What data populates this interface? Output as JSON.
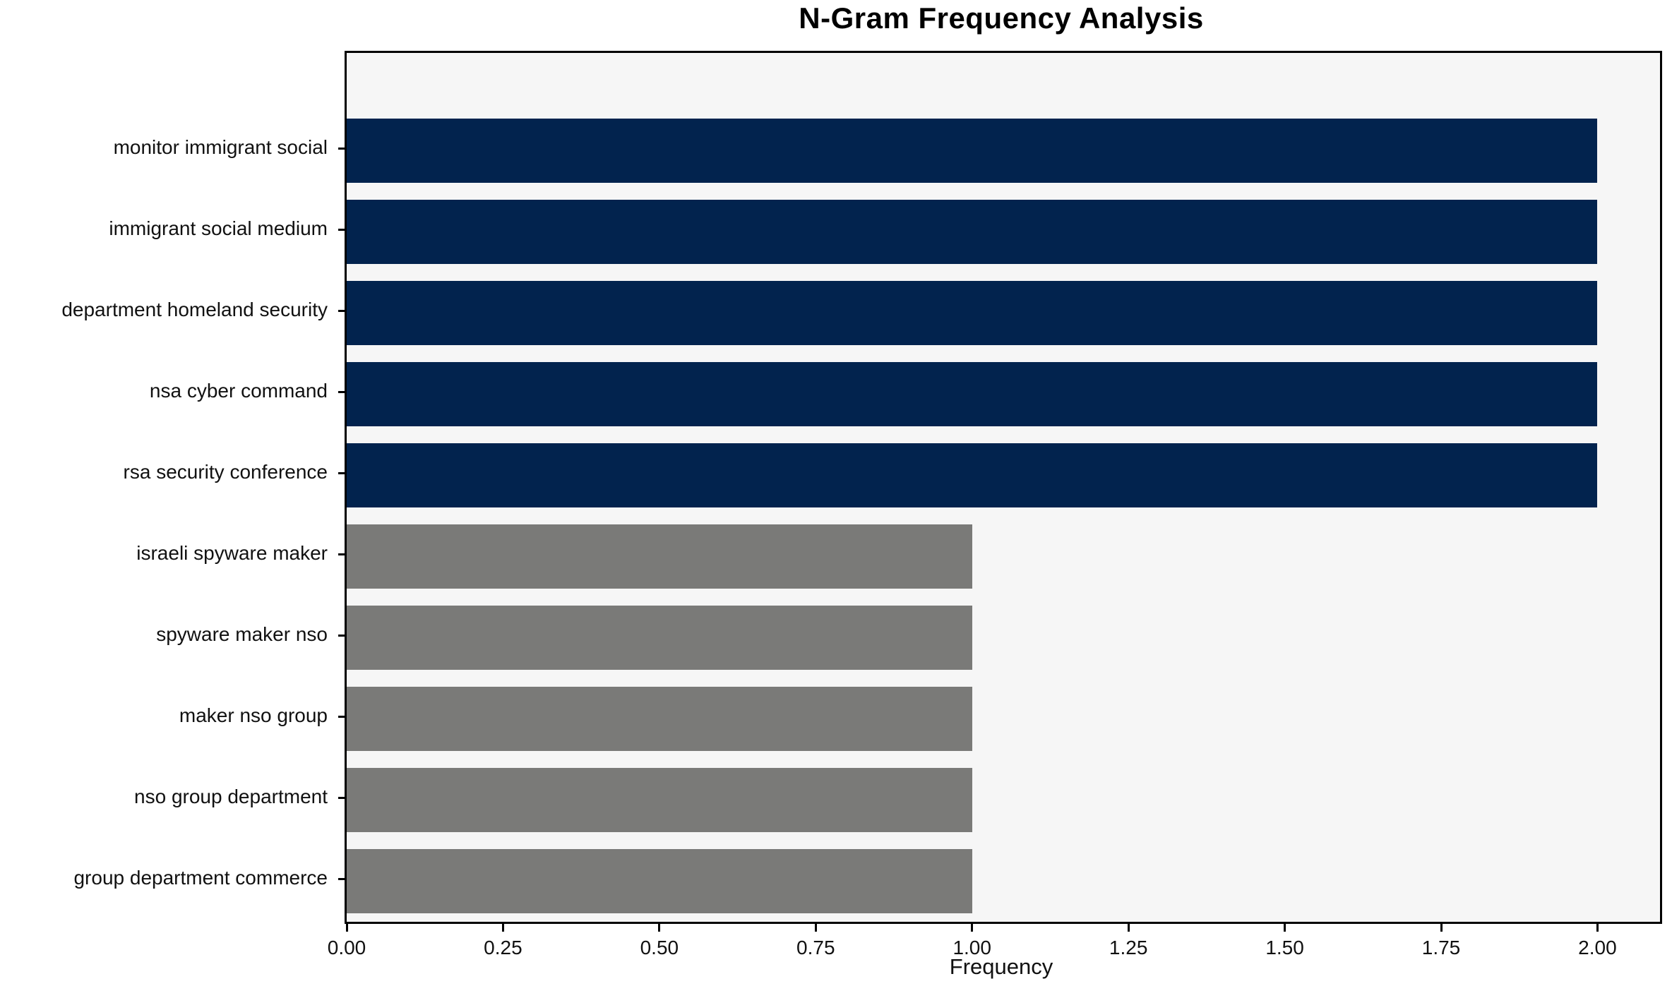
{
  "chart_data": {
    "type": "bar",
    "orientation": "horizontal",
    "title": "N-Gram Frequency Analysis",
    "xlabel": "Frequency",
    "ylabel": "",
    "categories": [
      "monitor immigrant social",
      "immigrant social medium",
      "department homeland security",
      "nsa cyber command",
      "rsa security conference",
      "israeli spyware maker",
      "spyware maker nso",
      "maker nso group",
      "nso group department",
      "group department commerce"
    ],
    "values": [
      2,
      2,
      2,
      2,
      2,
      1,
      1,
      1,
      1,
      1
    ],
    "bar_colors": [
      "#02234e",
      "#02234e",
      "#02234e",
      "#02234e",
      "#02234e",
      "#7a7a78",
      "#7a7a78",
      "#7a7a78",
      "#7a7a78",
      "#7a7a78"
    ],
    "xlim": [
      0,
      2.1
    ],
    "xticks": [
      0,
      0.25,
      0.5,
      0.75,
      1.0,
      1.25,
      1.5,
      1.75,
      2.0
    ],
    "xtick_labels": [
      "0.00",
      "0.25",
      "0.50",
      "0.75",
      "1.00",
      "1.25",
      "1.50",
      "1.75",
      "2.00"
    ],
    "grid": false,
    "legend": "none",
    "colors": {
      "bar_high": "#02234e",
      "bar_low": "#7a7a78",
      "plot_background": "#f6f6f6",
      "figure_background": "#ffffff",
      "spine": "#000000",
      "text": "#111111"
    }
  }
}
